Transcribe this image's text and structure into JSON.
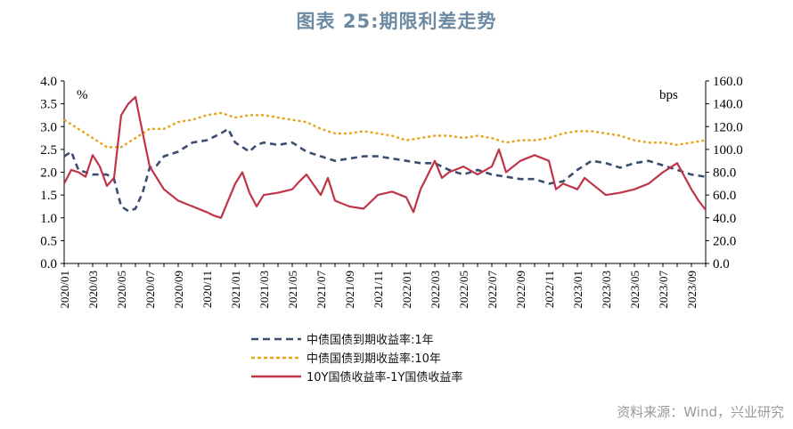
{
  "title": "图表 25:期限利差走势",
  "source": "资料来源：Wind，兴业研究",
  "chart_data": {
    "type": "line",
    "left_axis": {
      "unit_label": "%",
      "ylim": [
        0.0,
        4.0
      ],
      "ticks": [
        "0.0",
        "0.5",
        "1.0",
        "1.5",
        "2.0",
        "2.5",
        "3.0",
        "3.5",
        "4.0"
      ]
    },
    "right_axis": {
      "unit_label": "bps",
      "ylim": [
        0,
        160
      ],
      "ticks": [
        "0.0",
        "20.0",
        "40.0",
        "60.0",
        "80.0",
        "100.0",
        "120.0",
        "140.0",
        "160.0"
      ]
    },
    "x_ticks": [
      "2020/01",
      "2020/03",
      "2020/05",
      "2020/07",
      "2020/09",
      "2020/11",
      "2021/01",
      "2021/03",
      "2021/05",
      "2021/07",
      "2021/09",
      "2021/11",
      "2022/01",
      "2022/03",
      "2022/05",
      "2022/07",
      "2022/09",
      "2022/11",
      "2023/01",
      "2023/03",
      "2023/05",
      "2023/07",
      "2023/09"
    ],
    "x_range": [
      "2020/01",
      "2023/10"
    ],
    "grid": false,
    "legend_position": "bottom",
    "series": [
      {
        "name": "中债国债到期收益率:1年",
        "axis": "left",
        "color": "#3b4e6e",
        "dash": "dash",
        "points": [
          [
            "2020/01",
            2.35
          ],
          [
            "2020/01",
            2.45
          ],
          [
            "2020/02",
            2.05
          ],
          [
            "2020/03",
            1.95
          ],
          [
            "2020/04",
            1.95
          ],
          [
            "2020/04",
            1.85
          ],
          [
            "2020/05",
            1.25
          ],
          [
            "2020/05",
            1.15
          ],
          [
            "2020/06",
            1.2
          ],
          [
            "2020/06",
            1.55
          ],
          [
            "2020/07",
            2.1
          ],
          [
            "2020/07",
            2.15
          ],
          [
            "2020/08",
            2.35
          ],
          [
            "2020/09",
            2.45
          ],
          [
            "2020/10",
            2.65
          ],
          [
            "2020/11",
            2.7
          ],
          [
            "2020/12",
            2.85
          ],
          [
            "2020/12",
            2.95
          ],
          [
            "2021/01",
            2.65
          ],
          [
            "2021/02",
            2.45
          ],
          [
            "2021/02",
            2.6
          ],
          [
            "2021/03",
            2.65
          ],
          [
            "2021/04",
            2.6
          ],
          [
            "2021/05",
            2.65
          ],
          [
            "2021/06",
            2.45
          ],
          [
            "2021/07",
            2.35
          ],
          [
            "2021/08",
            2.25
          ],
          [
            "2021/09",
            2.3
          ],
          [
            "2021/10",
            2.35
          ],
          [
            "2021/11",
            2.35
          ],
          [
            "2021/12",
            2.3
          ],
          [
            "2022/01",
            2.25
          ],
          [
            "2022/02",
            2.2
          ],
          [
            "2022/03",
            2.2
          ],
          [
            "2022/04",
            2.05
          ],
          [
            "2022/05",
            1.95
          ],
          [
            "2022/06",
            2.05
          ],
          [
            "2022/07",
            1.95
          ],
          [
            "2022/08",
            1.9
          ],
          [
            "2022/09",
            1.85
          ],
          [
            "2022/10",
            1.85
          ],
          [
            "2022/11",
            1.75
          ],
          [
            "2022/12",
            1.8
          ],
          [
            "2023/01",
            2.05
          ],
          [
            "2023/02",
            2.25
          ],
          [
            "2023/03",
            2.2
          ],
          [
            "2023/04",
            2.1
          ],
          [
            "2023/05",
            2.2
          ],
          [
            "2023/06",
            2.25
          ],
          [
            "2023/07",
            2.15
          ],
          [
            "2023/08",
            2.05
          ],
          [
            "2023/09",
            1.95
          ],
          [
            "2023/10",
            1.9
          ]
        ]
      },
      {
        "name": "中债国债到期收益率:10年",
        "axis": "left",
        "color": "#e8a317",
        "dash": "dot",
        "points": [
          [
            "2020/01",
            3.15
          ],
          [
            "2020/02",
            2.95
          ],
          [
            "2020/03",
            2.75
          ],
          [
            "2020/04",
            2.55
          ],
          [
            "2020/05",
            2.55
          ],
          [
            "2020/06",
            2.75
          ],
          [
            "2020/07",
            2.95
          ],
          [
            "2020/08",
            2.95
          ],
          [
            "2020/09",
            3.1
          ],
          [
            "2020/10",
            3.15
          ],
          [
            "2020/11",
            3.25
          ],
          [
            "2020/12",
            3.3
          ],
          [
            "2021/01",
            3.2
          ],
          [
            "2021/02",
            3.25
          ],
          [
            "2021/03",
            3.25
          ],
          [
            "2021/04",
            3.2
          ],
          [
            "2021/05",
            3.15
          ],
          [
            "2021/06",
            3.1
          ],
          [
            "2021/07",
            2.95
          ],
          [
            "2021/08",
            2.85
          ],
          [
            "2021/09",
            2.85
          ],
          [
            "2021/10",
            2.9
          ],
          [
            "2021/11",
            2.85
          ],
          [
            "2021/12",
            2.8
          ],
          [
            "2022/01",
            2.7
          ],
          [
            "2022/02",
            2.75
          ],
          [
            "2022/03",
            2.8
          ],
          [
            "2022/04",
            2.8
          ],
          [
            "2022/05",
            2.75
          ],
          [
            "2022/06",
            2.8
          ],
          [
            "2022/07",
            2.75
          ],
          [
            "2022/08",
            2.65
          ],
          [
            "2022/09",
            2.7
          ],
          [
            "2022/10",
            2.7
          ],
          [
            "2022/11",
            2.75
          ],
          [
            "2022/12",
            2.85
          ],
          [
            "2023/01",
            2.9
          ],
          [
            "2023/02",
            2.9
          ],
          [
            "2023/03",
            2.85
          ],
          [
            "2023/04",
            2.8
          ],
          [
            "2023/05",
            2.7
          ],
          [
            "2023/06",
            2.65
          ],
          [
            "2023/07",
            2.65
          ],
          [
            "2023/08",
            2.6
          ],
          [
            "2023/09",
            2.65
          ],
          [
            "2023/10",
            2.7
          ]
        ]
      },
      {
        "name": "10Y国债收益率-1Y国债收益率",
        "axis": "right",
        "color": "#c0344a",
        "dash": "solid",
        "points": [
          [
            "2020/01",
            70
          ],
          [
            "2020/01",
            82
          ],
          [
            "2020/02",
            80
          ],
          [
            "2020/02",
            76
          ],
          [
            "2020/03",
            95
          ],
          [
            "2020/03",
            85
          ],
          [
            "2020/04",
            68
          ],
          [
            "2020/04",
            75
          ],
          [
            "2020/05",
            130
          ],
          [
            "2020/05",
            140
          ],
          [
            "2020/06",
            146
          ],
          [
            "2020/06",
            115
          ],
          [
            "2020/07",
            85
          ],
          [
            "2020/07",
            75
          ],
          [
            "2020/08",
            65
          ],
          [
            "2020/09",
            55
          ],
          [
            "2020/10",
            50
          ],
          [
            "2020/11",
            45
          ],
          [
            "2020/11",
            42
          ],
          [
            "2020/12",
            40
          ],
          [
            "2021/01",
            70
          ],
          [
            "2021/01",
            80
          ],
          [
            "2021/02",
            62
          ],
          [
            "2021/02",
            50
          ],
          [
            "2021/03",
            60
          ],
          [
            "2021/04",
            62
          ],
          [
            "2021/05",
            65
          ],
          [
            "2021/05",
            72
          ],
          [
            "2021/06",
            78
          ],
          [
            "2021/07",
            60
          ],
          [
            "2021/07",
            75
          ],
          [
            "2021/08",
            55
          ],
          [
            "2021/09",
            50
          ],
          [
            "2021/10",
            48
          ],
          [
            "2021/11",
            60
          ],
          [
            "2021/12",
            63
          ],
          [
            "2022/01",
            58
          ],
          [
            "2022/01",
            45
          ],
          [
            "2022/02",
            65
          ],
          [
            "2022/03",
            90
          ],
          [
            "2022/03",
            75
          ],
          [
            "2022/04",
            80
          ],
          [
            "2022/05",
            85
          ],
          [
            "2022/06",
            78
          ],
          [
            "2022/07",
            85
          ],
          [
            "2022/07",
            100
          ],
          [
            "2022/08",
            80
          ],
          [
            "2022/09",
            90
          ],
          [
            "2022/10",
            95
          ],
          [
            "2022/11",
            90
          ],
          [
            "2022/11",
            65
          ],
          [
            "2022/12",
            70
          ],
          [
            "2023/01",
            65
          ],
          [
            "2023/01",
            75
          ],
          [
            "2023/02",
            70
          ],
          [
            "2023/03",
            60
          ],
          [
            "2023/04",
            62
          ],
          [
            "2023/05",
            65
          ],
          [
            "2023/06",
            70
          ],
          [
            "2023/07",
            80
          ],
          [
            "2023/08",
            88
          ],
          [
            "2023/09",
            65
          ],
          [
            "2023/09",
            55
          ],
          [
            "2023/10",
            47
          ]
        ]
      }
    ]
  }
}
